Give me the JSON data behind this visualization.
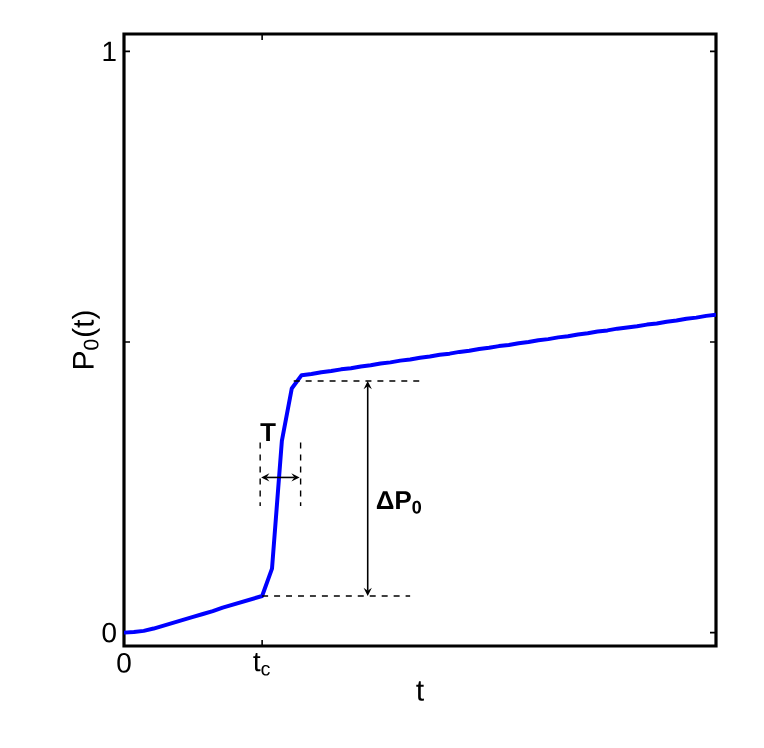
{
  "chart_data": {
    "type": "line",
    "xlabel": "t",
    "ylabel": "P$_{0}$(t)",
    "categories": [
      "0",
      null,
      null,
      null,
      null,
      null,
      null,
      null,
      null,
      null,
      null,
      null,
      null,
      null,
      "t$_{c}$",
      null,
      null,
      null,
      null,
      null,
      null,
      null,
      null,
      null,
      null,
      null,
      null,
      null,
      null,
      null,
      null,
      null,
      null,
      null,
      null,
      null,
      null,
      null,
      null,
      null,
      null,
      null,
      null,
      null,
      null,
      null,
      null,
      null,
      null,
      null,
      null,
      null,
      null,
      null,
      null,
      null,
      null,
      null,
      null,
      null,
      null
    ],
    "series": [
      {
        "color": "#0000ff",
        "values": [
          0,
          0.001,
          0.003,
          0.007,
          0.012,
          0.017,
          0.022,
          0.027,
          0.032,
          0.037,
          0.043,
          0.048,
          0.053,
          0.058,
          0.063,
          0.11,
          0.33,
          0.42,
          0.443,
          0.445,
          0.448,
          0.45,
          0.453,
          0.455,
          0.458,
          0.46,
          0.463,
          0.465,
          0.468,
          0.47,
          0.473,
          0.475,
          0.478,
          0.48,
          0.483,
          0.485,
          0.488,
          0.49,
          0.493,
          0.495,
          0.498,
          0.5,
          0.503,
          0.505,
          0.508,
          0.51,
          0.513,
          0.515,
          0.518,
          0.52,
          0.523,
          0.525,
          0.527,
          0.53,
          0.532,
          0.535,
          0.537,
          0.54,
          0.542,
          0.545,
          0.547
        ]
      }
    ],
    "ylim": [
      -0.023,
      1.03
    ],
    "yticks": [
      0,
      {
        "value": 0.5,
        "label": null
      },
      1
    ],
    "annotations": [
      "T",
      "ΔP$_{0}$"
    ],
    "ref_lines": [
      {
        "axis": "y",
        "value": 0.063,
        "color": "#000000",
        "line_style": "dashed"
      },
      {
        "axis": "y",
        "value": 0.433,
        "color": "#000000",
        "line_style": "dashed"
      }
    ],
    "grid": false,
    "marker": "none",
    "line_style": "solid"
  }
}
